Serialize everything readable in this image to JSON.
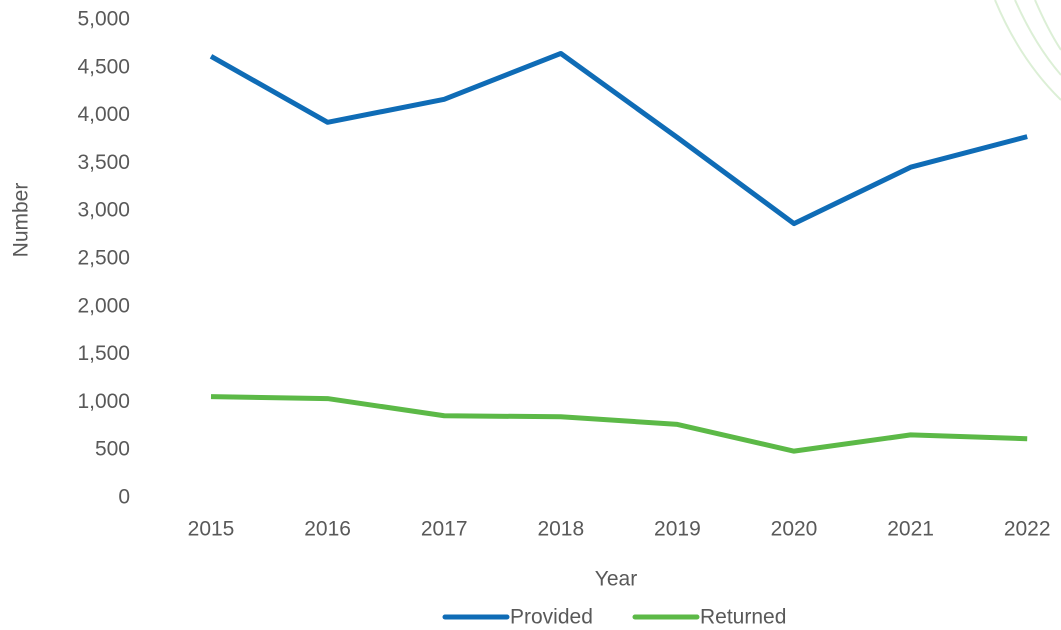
{
  "chart_data": {
    "type": "line",
    "categories": [
      "2015",
      "2016",
      "2017",
      "2018",
      "2019",
      "2020",
      "2021",
      "2022"
    ],
    "series": [
      {
        "name": "Provided",
        "color": "#0f6cb6",
        "values": [
          4620,
          3930,
          4170,
          4650,
          3770,
          2870,
          3460,
          3780
        ]
      },
      {
        "name": "Returned",
        "color": "#5cb947",
        "values": [
          1060,
          1040,
          860,
          850,
          770,
          490,
          660,
          620
        ]
      }
    ],
    "ylim": [
      0,
      5000
    ],
    "yticks": [
      0,
      500,
      {
        "value": 1000,
        "label": "1,000"
      },
      {
        "value": 1500,
        "label": "1,500"
      },
      {
        "value": 2000,
        "label": "2,000"
      },
      {
        "value": 2500,
        "label": "2,500"
      },
      {
        "value": 3000,
        "label": "3,000"
      },
      {
        "value": 3500,
        "label": "3,500"
      },
      {
        "value": 4000,
        "label": "4,000"
      },
      {
        "value": 4500,
        "label": "4,500"
      },
      {
        "value": 5000,
        "label": "5,000"
      }
    ],
    "xlabel": "Year",
    "ylabel": "Number",
    "grid": false,
    "legend": "bottom"
  }
}
